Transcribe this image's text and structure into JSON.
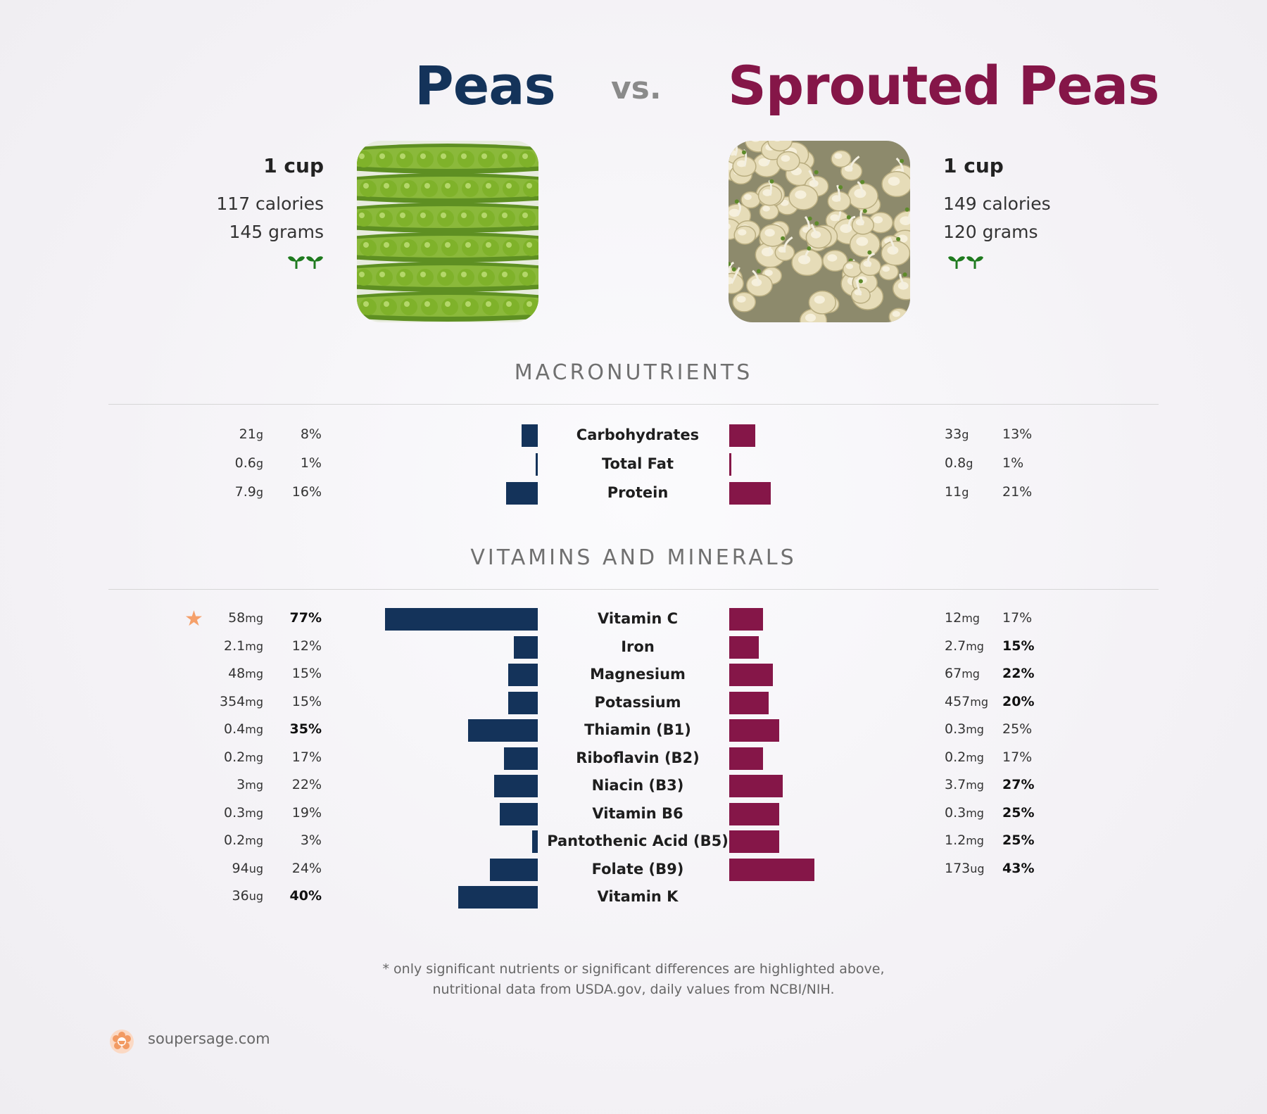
{
  "header": {
    "left_title": "Peas",
    "vs": "vs.",
    "right_title": "Sprouted Peas"
  },
  "left_food": {
    "serving": "1 cup",
    "calories": "117 calories",
    "grams": "145 grams",
    "icon": "sprout-icon"
  },
  "right_food": {
    "serving": "1 cup",
    "calories": "149 calories",
    "grams": "120 grams",
    "icon": "sprout-icon"
  },
  "colors": {
    "left": "#14335a",
    "right": "#851648",
    "star": "#f5a06a"
  },
  "chart_data": [
    {
      "type": "bar",
      "title": "MACRONUTRIENTS",
      "categories": [
        "Carbohydrates",
        "Total Fat",
        "Protein"
      ],
      "series": [
        {
          "name": "Peas",
          "amounts": [
            "21",
            "0.6",
            "7.9"
          ],
          "units": [
            "g",
            "g",
            "g"
          ],
          "pct_labels": [
            "8%",
            "1%",
            "16%"
          ],
          "values": [
            8,
            1,
            16
          ],
          "bold": [
            false,
            false,
            false
          ]
        },
        {
          "name": "Sprouted Peas",
          "amounts": [
            "33",
            "0.8",
            "11"
          ],
          "units": [
            "g",
            "g",
            "g"
          ],
          "pct_labels": [
            "13%",
            "1%",
            "21%"
          ],
          "values": [
            13,
            1,
            21
          ],
          "bold": [
            false,
            false,
            false
          ]
        }
      ]
    },
    {
      "type": "bar",
      "title": "VITAMINS AND MINERALS",
      "categories": [
        "Vitamin C",
        "Iron",
        "Magnesium",
        "Potassium",
        "Thiamin (B1)",
        "Riboflavin (B2)",
        "Niacin (B3)",
        "Vitamin B6",
        "Pantothenic Acid (B5)",
        "Folate (B9)",
        "Vitamin K"
      ],
      "starred": [
        true,
        false,
        false,
        false,
        false,
        false,
        false,
        false,
        false,
        false,
        false
      ],
      "series": [
        {
          "name": "Peas",
          "amounts": [
            "58",
            "2.1",
            "48",
            "354",
            "0.4",
            "0.2",
            "3",
            "0.3",
            "0.2",
            "94",
            "36"
          ],
          "units": [
            "mg",
            "mg",
            "mg",
            "mg",
            "mg",
            "mg",
            "mg",
            "mg",
            "mg",
            "ug",
            "ug"
          ],
          "pct_labels": [
            "77%",
            "12%",
            "15%",
            "15%",
            "35%",
            "17%",
            "22%",
            "19%",
            "3%",
            "24%",
            "40%"
          ],
          "values": [
            77,
            12,
            15,
            15,
            35,
            17,
            22,
            19,
            3,
            24,
            40
          ],
          "bold": [
            true,
            false,
            false,
            false,
            true,
            false,
            false,
            false,
            false,
            false,
            true
          ]
        },
        {
          "name": "Sprouted Peas",
          "amounts": [
            "12",
            "2.7",
            "67",
            "457",
            "0.3",
            "0.2",
            "3.7",
            "0.3",
            "1.2",
            "173",
            ""
          ],
          "units": [
            "mg",
            "mg",
            "mg",
            "mg",
            "mg",
            "mg",
            "mg",
            "mg",
            "mg",
            "ug",
            ""
          ],
          "pct_labels": [
            "17%",
            "15%",
            "22%",
            "20%",
            "25%",
            "17%",
            "27%",
            "25%",
            "25%",
            "43%",
            ""
          ],
          "values": [
            17,
            15,
            22,
            20,
            25,
            17,
            27,
            25,
            25,
            43,
            0
          ],
          "bold": [
            false,
            true,
            true,
            true,
            false,
            false,
            true,
            true,
            true,
            true,
            false
          ]
        }
      ]
    }
  ],
  "footnote": {
    "line1": "* only significant nutrients or significant differences are highlighted above,",
    "line2": "nutritional data from USDA.gov, daily values from NCBI/NIH."
  },
  "brand": {
    "text": "soupersage.com",
    "icon": "soupersage-logo-icon"
  }
}
